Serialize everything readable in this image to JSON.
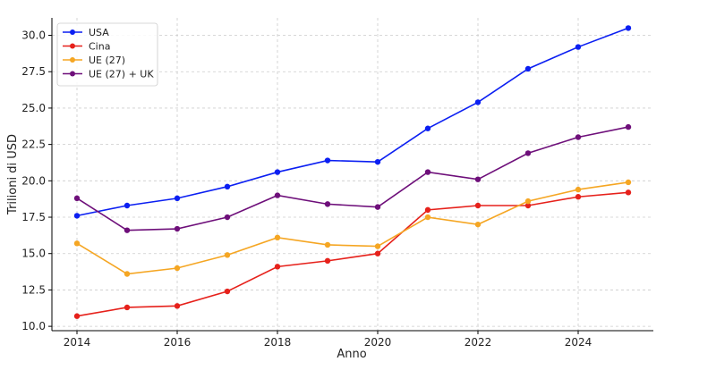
{
  "chart_data": {
    "type": "line",
    "title": "",
    "xlabel": "Anno",
    "ylabel": "Trilioni di USD",
    "x": [
      2014,
      2015,
      2016,
      2017,
      2018,
      2019,
      2020,
      2021,
      2022,
      2023,
      2024,
      2025
    ],
    "xlim": [
      2013.5,
      2025.5
    ],
    "ylim": [
      9.7,
      31.2
    ],
    "xticks": [
      2014,
      2016,
      2018,
      2020,
      2022,
      2024
    ],
    "yticks": [
      10.0,
      12.5,
      15.0,
      17.5,
      20.0,
      22.5,
      25.0,
      27.5,
      30.0
    ],
    "grid": true,
    "legend_position": "top-left",
    "series": [
      {
        "name": "USA",
        "color": "#0b1ff2",
        "values": [
          17.6,
          18.3,
          18.8,
          19.6,
          20.6,
          21.4,
          21.3,
          23.6,
          25.4,
          27.7,
          29.2,
          30.5
        ]
      },
      {
        "name": "Cina",
        "color": "#e6211b",
        "values": [
          10.7,
          11.3,
          11.4,
          12.4,
          14.1,
          14.5,
          15.0,
          18.0,
          18.3,
          18.3,
          18.9,
          19.2
        ]
      },
      {
        "name": "UE (27)",
        "color": "#f5a623",
        "values": [
          15.7,
          13.6,
          14.0,
          14.9,
          16.1,
          15.6,
          15.5,
          17.5,
          17.0,
          18.6,
          19.4,
          19.9
        ]
      },
      {
        "name": "UE (27) + UK",
        "color": "#6e0f7a",
        "values": [
          18.8,
          16.6,
          16.7,
          17.5,
          19.0,
          18.4,
          18.2,
          20.6,
          20.1,
          21.9,
          23.0,
          23.7
        ]
      }
    ]
  }
}
